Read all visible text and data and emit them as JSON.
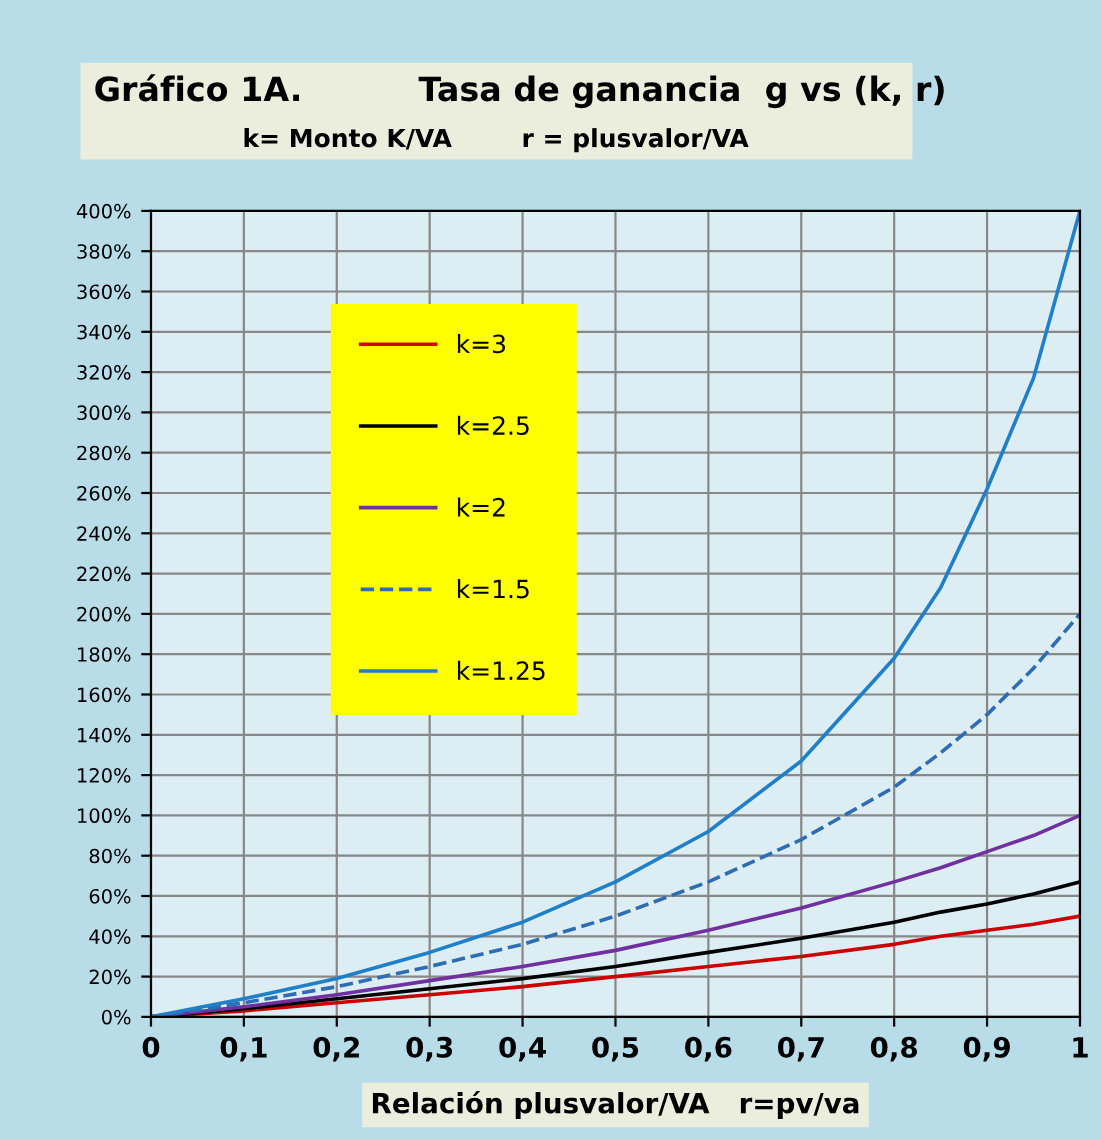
{
  "chart_data": {
    "type": "line",
    "title": "Gráfico 1A.          Tasa de ganancia  g vs (k, r)",
    "subtitle": "k= Monto K/VA        r = plusvalor/VA",
    "xlabel": "Relación plusvalor/VA   r=pv/va",
    "x": [
      0,
      0.1,
      0.2,
      0.3,
      0.4,
      0.5,
      0.6,
      0.7,
      0.8,
      0.85,
      0.9,
      0.95,
      1
    ],
    "series": [
      {
        "name": "k=3",
        "color": "#cc0000",
        "line_style": "solid",
        "values": [
          0,
          3,
          7,
          11,
          15,
          20,
          25,
          30,
          36,
          40,
          43,
          46,
          50
        ]
      },
      {
        "name": "k=2.5",
        "color": "#000000",
        "line_style": "solid",
        "values": [
          0,
          4,
          9,
          14,
          19,
          25,
          32,
          39,
          47,
          52,
          56,
          61,
          67
        ]
      },
      {
        "name": "k=2",
        "color": "#7030a0",
        "line_style": "solid",
        "values": [
          0,
          5,
          11,
          18,
          25,
          33,
          43,
          54,
          67,
          74,
          82,
          90,
          100
        ]
      },
      {
        "name": "k=1.5",
        "color": "#2e6db4",
        "line_style": "dashed",
        "values": [
          0,
          7,
          15,
          25,
          36,
          50,
          67,
          88,
          114,
          131,
          150,
          173,
          200
        ]
      },
      {
        "name": "k=1.25",
        "color": "#1f7fc8",
        "line_style": "solid",
        "values": [
          0,
          9,
          19,
          32,
          47,
          67,
          92,
          127,
          178,
          213,
          262,
          317,
          400
        ]
      }
    ],
    "xlim": [
      0,
      1
    ],
    "xticks": [
      {
        "value": 0,
        "label": "0"
      },
      {
        "value": 0.1,
        "label": "0,1"
      },
      {
        "value": 0.2,
        "label": "0,2"
      },
      {
        "value": 0.3,
        "label": "0,3"
      },
      {
        "value": 0.4,
        "label": "0,4"
      },
      {
        "value": 0.5,
        "label": "0,5"
      },
      {
        "value": 0.6,
        "label": "0,6"
      },
      {
        "value": 0.7,
        "label": "0,7"
      },
      {
        "value": 0.8,
        "label": "0,8"
      },
      {
        "value": 0.9,
        "label": "0,9"
      },
      {
        "value": 1,
        "label": "1"
      }
    ],
    "ylim": [
      0,
      400
    ],
    "yticks": [
      {
        "value": 0,
        "label": "0%"
      },
      {
        "value": 20,
        "label": "20%"
      },
      {
        "value": 40,
        "label": "40%"
      },
      {
        "value": 60,
        "label": "60%"
      },
      {
        "value": 80,
        "label": "80%"
      },
      {
        "value": 100,
        "label": "100%"
      },
      {
        "value": 120,
        "label": "120%"
      },
      {
        "value": 140,
        "label": "140%"
      },
      {
        "value": 160,
        "label": "160%"
      },
      {
        "value": 180,
        "label": "180%"
      },
      {
        "value": 200,
        "label": "200%"
      },
      {
        "value": 220,
        "label": "220%"
      },
      {
        "value": 240,
        "label": "240%"
      },
      {
        "value": 260,
        "label": "260%"
      },
      {
        "value": 280,
        "label": "280%"
      },
      {
        "value": 300,
        "label": "300%"
      },
      {
        "value": 320,
        "label": "320%"
      },
      {
        "value": 340,
        "label": "340%"
      },
      {
        "value": 360,
        "label": "360%"
      },
      {
        "value": 380,
        "label": "380%"
      },
      {
        "value": 400,
        "label": "400%"
      }
    ],
    "grid": true,
    "legend": "top left",
    "marker": "none"
  }
}
